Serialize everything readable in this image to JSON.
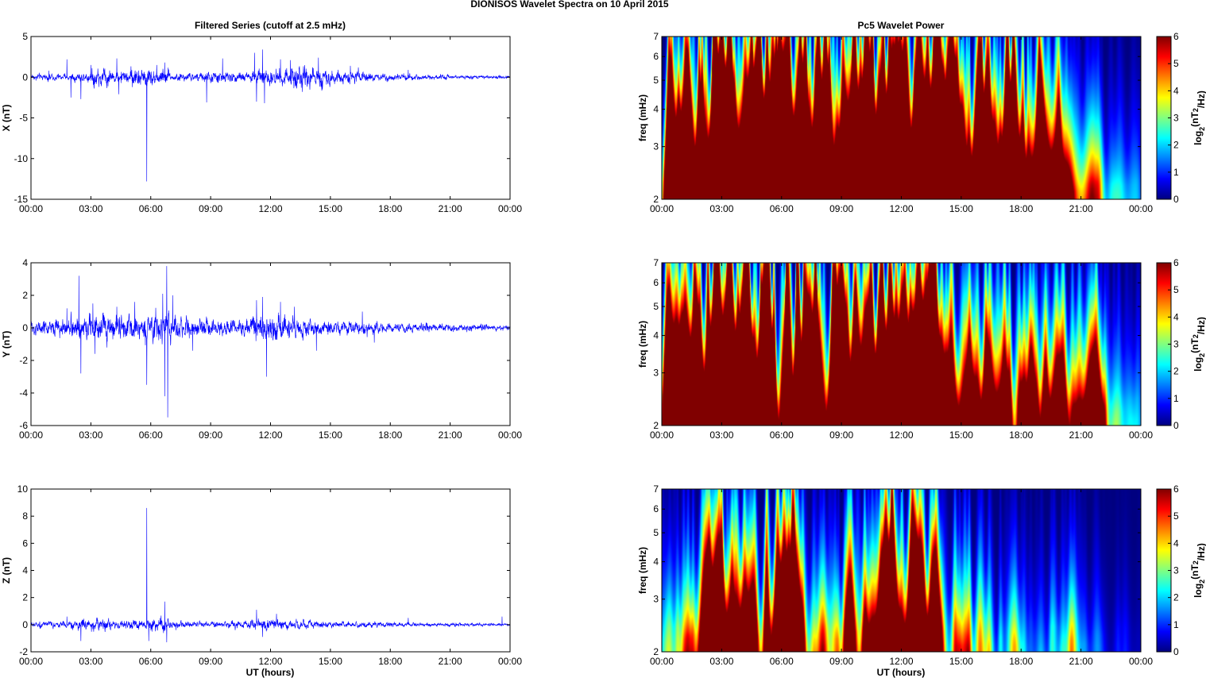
{
  "figure": {
    "suptitle": "DIONISOS Wavelet Spectra on 10 April     2015",
    "left_title": "Filtered Series (cutoff at 2.5 mHz)",
    "right_title": "Pc5 Wavelet Power",
    "xlabel": "UT (hours)",
    "time_ticks": [
      "00:00",
      "03:00",
      "06:00",
      "09:00",
      "12:00",
      "15:00",
      "18:00",
      "21:00",
      "00:00"
    ],
    "trace_color": "#0000ff"
  },
  "chart_data": [
    {
      "type": "line",
      "panel": "X",
      "ylabel": "X (nT)",
      "xlim": [
        0,
        24
      ],
      "ylim": [
        -15,
        5
      ],
      "yticks": [
        5,
        0,
        -5,
        -10,
        -15
      ],
      "noise": [
        0.35,
        0.35,
        0.5,
        1.0,
        0.7,
        1.1,
        0.9,
        0.45,
        0.5,
        0.6,
        0.55,
        0.8,
        0.95,
        1.3,
        1.0,
        0.7,
        0.55,
        0.45,
        0.35,
        0.3,
        0.25,
        0.2,
        0.2,
        0.18
      ],
      "spikes": [
        [
          0.9,
          0.8
        ],
        [
          1.8,
          2.2
        ],
        [
          2.0,
          -2.5
        ],
        [
          2.5,
          2.5
        ],
        [
          2.5,
          -2.7
        ],
        [
          3.0,
          1.5
        ],
        [
          3.4,
          -1.2
        ],
        [
          4.3,
          2.3
        ],
        [
          4.4,
          -2.1
        ],
        [
          5.8,
          -12.8
        ],
        [
          6.3,
          1.5
        ],
        [
          6.7,
          1.8
        ],
        [
          8.8,
          -3.1
        ],
        [
          9.6,
          2.3
        ],
        [
          11.2,
          3.0
        ],
        [
          11.3,
          -3.0
        ],
        [
          11.6,
          3.4
        ],
        [
          11.7,
          -3.2
        ],
        [
          12.5,
          2.2
        ],
        [
          13.0,
          2.1
        ],
        [
          13.6,
          -1.8
        ],
        [
          14.4,
          2.4
        ],
        [
          14.6,
          -1.5
        ],
        [
          16.0,
          1.4
        ],
        [
          16.4,
          1.2
        ],
        [
          18.9,
          0.9
        ]
      ]
    },
    {
      "type": "line",
      "panel": "Y",
      "ylabel": "Y (nT)",
      "xlim": [
        0,
        24
      ],
      "ylim": [
        -6,
        4
      ],
      "yticks": [
        4,
        2,
        0,
        -2,
        -4,
        -6
      ],
      "noise": [
        0.4,
        0.5,
        0.7,
        0.8,
        0.6,
        0.7,
        0.9,
        0.6,
        0.5,
        0.45,
        0.5,
        0.7,
        0.75,
        0.6,
        0.4,
        0.35,
        0.4,
        0.3,
        0.25,
        0.25,
        0.2,
        0.2,
        0.18,
        0.15
      ],
      "spikes": [
        [
          1.8,
          1.2
        ],
        [
          2.4,
          3.2
        ],
        [
          2.5,
          -2.8
        ],
        [
          3.1,
          1.5
        ],
        [
          3.2,
          -1.6
        ],
        [
          4.3,
          1.3
        ],
        [
          5.2,
          1.6
        ],
        [
          5.8,
          -3.5
        ],
        [
          6.6,
          2.1
        ],
        [
          6.7,
          -4.2
        ],
        [
          6.8,
          3.8
        ],
        [
          6.85,
          -5.5
        ],
        [
          7.1,
          2.0
        ],
        [
          8.1,
          -1.4
        ],
        [
          11.3,
          1.7
        ],
        [
          11.6,
          1.9
        ],
        [
          11.8,
          -3.0
        ],
        [
          12.5,
          1.6
        ],
        [
          13.2,
          1.3
        ],
        [
          14.3,
          -1.4
        ],
        [
          16.6,
          1.0
        ],
        [
          17.2,
          -0.9
        ]
      ]
    },
    {
      "type": "line",
      "panel": "Z",
      "ylabel": "Z (nT)",
      "xlim": [
        0,
        24
      ],
      "ylim": [
        -2,
        10
      ],
      "yticks": [
        10,
        8,
        6,
        4,
        2,
        0,
        -2
      ],
      "noise": [
        0.2,
        0.2,
        0.35,
        0.45,
        0.25,
        0.3,
        0.5,
        0.25,
        0.2,
        0.2,
        0.25,
        0.4,
        0.35,
        0.3,
        0.25,
        0.2,
        0.2,
        0.2,
        0.15,
        0.15,
        0.12,
        0.12,
        0.1,
        0.1
      ],
      "spikes": [
        [
          1.8,
          0.6
        ],
        [
          2.5,
          1.2
        ],
        [
          2.5,
          -1.2
        ],
        [
          5.8,
          8.6
        ],
        [
          5.9,
          -1.2
        ],
        [
          6.7,
          1.7
        ],
        [
          6.8,
          -1.3
        ],
        [
          11.3,
          1.1
        ],
        [
          11.6,
          -0.9
        ],
        [
          12.3,
          0.8
        ],
        [
          18.9,
          0.5
        ],
        [
          23.6,
          0.6
        ]
      ]
    },
    {
      "type": "heatmap",
      "panel": "X wavelet",
      "ylabel": "freq (mHz)",
      "xlim": [
        0,
        24
      ],
      "ylim": [
        2,
        7
      ],
      "yscale": "log",
      "yticks": [
        7,
        6,
        5,
        4,
        3,
        2
      ],
      "clim": [
        0,
        6
      ],
      "colorbar_label": "log2(nT^2/Hz)",
      "colorbar_ticks": [
        6,
        5,
        4,
        3,
        2,
        1,
        0
      ],
      "activity": [
        0.7,
        0.8,
        1.05,
        1.0,
        1.0,
        1.0,
        1.05,
        1.0,
        0.9,
        0.95,
        1.0,
        1.05,
        1.05,
        1.05,
        0.9,
        0.8,
        0.85,
        0.85,
        0.7,
        0.55,
        0.4,
        0.25,
        0.15,
        0.1
      ]
    },
    {
      "type": "heatmap",
      "panel": "Y wavelet",
      "ylabel": "freq (mHz)",
      "xlim": [
        0,
        24
      ],
      "ylim": [
        2,
        7
      ],
      "yscale": "log",
      "yticks": [
        7,
        6,
        5,
        4,
        3,
        2
      ],
      "clim": [
        0,
        6
      ],
      "colorbar_label": "log2(nT^2/Hz)",
      "colorbar_ticks": [
        6,
        5,
        4,
        3,
        2,
        1,
        0
      ],
      "activity": [
        0.75,
        0.85,
        0.95,
        0.95,
        0.95,
        1.0,
        1.05,
        1.0,
        0.9,
        0.9,
        0.85,
        0.9,
        0.95,
        0.95,
        0.55,
        0.55,
        0.55,
        0.5,
        0.5,
        0.45,
        0.5,
        0.45,
        0.3,
        0.15
      ]
    },
    {
      "type": "heatmap",
      "panel": "Z wavelet",
      "ylabel": "freq (mHz)",
      "xlim": [
        0,
        24
      ],
      "ylim": [
        2,
        7
      ],
      "yscale": "log",
      "yticks": [
        7,
        6,
        5,
        4,
        3,
        2
      ],
      "clim": [
        0,
        6
      ],
      "colorbar_label": "log2(nT^2/Hz)",
      "colorbar_ticks": [
        6,
        5,
        4,
        3,
        2,
        1,
        0
      ],
      "activity": [
        0.2,
        0.3,
        0.75,
        0.5,
        0.45,
        0.55,
        0.75,
        0.35,
        0.3,
        0.45,
        0.5,
        0.75,
        0.7,
        0.6,
        0.3,
        0.3,
        0.25,
        0.2,
        0.15,
        0.15,
        0.25,
        0.1,
        0.05,
        0.05
      ]
    }
  ]
}
